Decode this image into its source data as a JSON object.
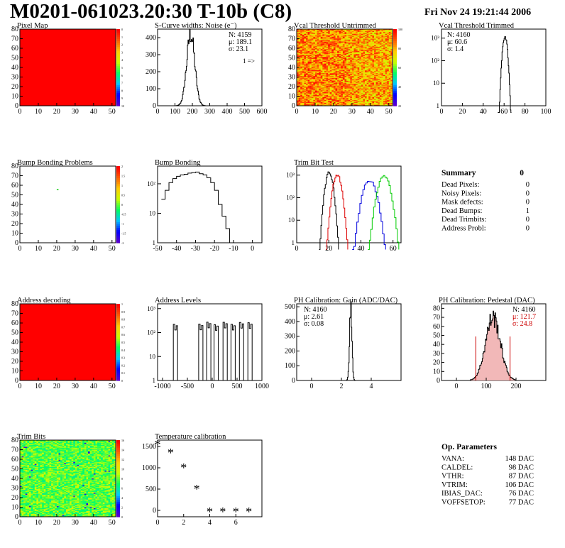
{
  "header": {
    "title": "M0201-061023.20:30 T-10b (C8)",
    "datestamp": "Fri Nov 24 19:21:44 2006"
  },
  "colors": {
    "map_red": "#ff0000",
    "gain_red": "#cc0000",
    "trim_black": "#000000",
    "trim_red": "#dd0000",
    "trim_blue": "#0000dd",
    "trim_green": "#00cc00"
  },
  "chart_data": [
    {
      "id": "pixel-map",
      "type": "heatmap",
      "title": "Pixel Map",
      "xlim": [
        0,
        52
      ],
      "ylim": [
        0,
        80
      ],
      "xticks": [
        "0",
        "10",
        "20",
        "30",
        "40",
        "50"
      ],
      "yticks": [
        "0",
        "10",
        "20",
        "30",
        "40",
        "50",
        "60",
        "70",
        "80"
      ],
      "fill": "uniform-red",
      "zticks": [
        "0",
        "1",
        "2",
        "3",
        "4",
        "5",
        "6",
        "7",
        "8",
        "9",
        "10"
      ]
    },
    {
      "id": "scurve",
      "type": "histogram",
      "title": "S-Curve widths: Noise (e⁻)",
      "xlim": [
        0,
        600
      ],
      "ylim": [
        0,
        450
      ],
      "xticks": [
        "0",
        "100",
        "200",
        "300",
        "400",
        "500",
        "600"
      ],
      "yticks": [
        "0",
        "100",
        "200",
        "300",
        "400"
      ],
      "stats": {
        "n": "N: 4159",
        "mean": "μ: 189.1",
        "sigma": "σ: 23.1"
      },
      "note": "1 =>",
      "series": [
        {
          "mean": 189.1,
          "sigma": 23.1,
          "peak": 420
        }
      ]
    },
    {
      "id": "vcal-untrimmed",
      "type": "heatmap",
      "title": "Vcal Threshold Untrimmed",
      "xlim": [
        0,
        52
      ],
      "ylim": [
        0,
        80
      ],
      "xticks": [
        "0",
        "10",
        "20",
        "30",
        "40",
        "50"
      ],
      "yticks": [
        "0",
        "10",
        "20",
        "30",
        "40",
        "50",
        "60",
        "70",
        "80"
      ],
      "fill": "noisy-orange",
      "zticks": [
        "100",
        "80",
        "60",
        "40",
        "20"
      ]
    },
    {
      "id": "vcal-trimmed",
      "type": "histogram",
      "title": "Vcal Threshold Trimmed",
      "logy": true,
      "xlim": [
        0,
        100
      ],
      "xticks": [
        "0",
        "20",
        "40",
        "60",
        "80",
        "100"
      ],
      "yticks": [
        "1",
        "10",
        "10²",
        "10³"
      ],
      "stats": {
        "n": "N: 4160",
        "mean": "μ: 60.6",
        "sigma": "σ: 1.4"
      },
      "series": [
        {
          "mean": 60.6,
          "sigma": 1.4,
          "peak": 1200
        }
      ]
    },
    {
      "id": "bump-map",
      "type": "heatmap",
      "title": "Bump Bonding Problems",
      "xlim": [
        0,
        52
      ],
      "ylim": [
        0,
        80
      ],
      "xticks": [
        "0",
        "10",
        "20",
        "30",
        "40",
        "50"
      ],
      "yticks": [
        "0",
        "10",
        "20",
        "30",
        "40",
        "50",
        "60",
        "70",
        "80"
      ],
      "fill": "empty",
      "points": [
        [
          20,
          56
        ]
      ],
      "zticks": [
        "2",
        "1.5",
        "1",
        "0.5",
        "0",
        "-0.5",
        "-1",
        "-1.5",
        "-2"
      ]
    },
    {
      "id": "bump-hist",
      "type": "histogram",
      "title": "Bump Bonding",
      "logy": true,
      "xlim": [
        -50,
        5
      ],
      "xticks": [
        "-50",
        "-40",
        "-30",
        "-20",
        "-10",
        "0"
      ],
      "yticks": [
        "1",
        "10",
        "10²"
      ],
      "series": [
        {
          "x": [
            -48,
            -46,
            -44,
            -42,
            -40,
            -38,
            -36,
            -34,
            -32,
            -30,
            -28,
            -26,
            -24,
            -22,
            -20,
            -18,
            -16,
            -14,
            -12,
            -10,
            -8,
            -6,
            -4,
            -2,
            0
          ],
          "y": [
            30,
            60,
            110,
            150,
            180,
            200,
            210,
            230,
            240,
            250,
            220,
            200,
            160,
            110,
            60,
            20,
            8,
            3,
            0,
            0,
            0,
            0,
            0,
            0,
            1
          ]
        }
      ]
    },
    {
      "id": "trimbit-test",
      "type": "histogram",
      "title": "Trim Bit Test",
      "logy": true,
      "xlim": [
        0,
        65
      ],
      "xticks": [
        "0",
        "20",
        "40",
        "60"
      ],
      "yticks": [
        "1",
        "10",
        "10²",
        "10³"
      ],
      "series": [
        {
          "color": "#000000",
          "mean": 20,
          "sigma": 1.5,
          "peak": 1300
        },
        {
          "color": "#dd0000",
          "mean": 25,
          "sigma": 1.7,
          "peak": 1000
        },
        {
          "color": "#0000dd",
          "mean": 45,
          "sigma": 2.6,
          "peak": 600
        },
        {
          "color": "#00cc00",
          "mean": 54,
          "sigma": 2.4,
          "peak": 900
        }
      ]
    },
    {
      "id": "address-map",
      "type": "heatmap",
      "title": "Address decoding",
      "xlim": [
        0,
        52
      ],
      "ylim": [
        0,
        80
      ],
      "xticks": [
        "0",
        "10",
        "20",
        "30",
        "40",
        "50"
      ],
      "yticks": [
        "0",
        "10",
        "20",
        "30",
        "40",
        "50",
        "60",
        "70",
        "80"
      ],
      "fill": "uniform-red",
      "zticks": [
        "1",
        "0.9",
        "0.8",
        "0.7",
        "0.6",
        "0.5",
        "0.4",
        "0.3",
        "0.2",
        "0.1",
        "0"
      ]
    },
    {
      "id": "address-levels",
      "type": "histogram",
      "title": "Address Levels",
      "logy": true,
      "xlim": [
        -1100,
        1000
      ],
      "xticks": [
        "-1000",
        "-500",
        "0",
        "500",
        "1000"
      ],
      "yticks": [
        "1",
        "10",
        "10²",
        "10³"
      ],
      "series": [
        {
          "peaks": [
            -740,
            -230,
            -70,
            80,
            260,
            420,
            590,
            760
          ],
          "height": 250
        }
      ]
    },
    {
      "id": "ph-gain",
      "type": "histogram",
      "title": "PH Calibration: Gain (ADC/DAC)",
      "xlim": [
        -1,
        6
      ],
      "ylim": [
        0,
        520
      ],
      "xticks": [
        "0",
        "2",
        "4"
      ],
      "yticks": [
        "0",
        "100",
        "200",
        "300",
        "400",
        "500"
      ],
      "stats": {
        "n": "N: 4160",
        "mean": "μ: 2.61",
        "sigma": "σ: 0.08"
      },
      "series": [
        {
          "mean": 2.61,
          "sigma": 0.08,
          "peak": 490
        }
      ]
    },
    {
      "id": "ph-pedestal",
      "type": "histogram",
      "title": "PH Calibration: Pedestal (DAC)",
      "xlim": [
        -50,
        300
      ],
      "ylim": [
        0,
        85
      ],
      "xticks": [
        "0",
        "100",
        "200"
      ],
      "yticks": [
        "0",
        "10",
        "20",
        "30",
        "40",
        "50",
        "60",
        "70",
        "80"
      ],
      "stats": {
        "n": "N: 4160",
        "mean": "μ: 121.7",
        "sigma": "σ: 24.8"
      },
      "series": [
        {
          "mean": 121.7,
          "sigma": 24.8,
          "peak": 70
        }
      ],
      "fit_range": [
        65,
        180
      ]
    },
    {
      "id": "trim-bits",
      "type": "heatmap",
      "title": "Trim Bits",
      "xlim": [
        0,
        52
      ],
      "ylim": [
        0,
        80
      ],
      "xticks": [
        "0",
        "10",
        "20",
        "30",
        "40",
        "50"
      ],
      "yticks": [
        "0",
        "10",
        "20",
        "30",
        "40",
        "50",
        "60",
        "70",
        "80"
      ],
      "fill": "noisy-green",
      "zticks": [
        "16",
        "14",
        "12",
        "10",
        "8",
        "6",
        "4",
        "2",
        "0"
      ]
    },
    {
      "id": "temperature",
      "type": "scatter",
      "title": "Temperature calibration",
      "xlim": [
        0,
        8
      ],
      "ylim": [
        -150,
        1650
      ],
      "xticks": [
        "0",
        "2",
        "4",
        "6"
      ],
      "yticks": [
        "0",
        "500",
        "1000",
        "1500"
      ],
      "x": [
        0,
        1,
        2,
        3,
        4,
        5,
        6,
        7
      ],
      "y": [
        1550,
        1350,
        1000,
        500,
        -30,
        -30,
        -30,
        -30
      ]
    }
  ],
  "summary": {
    "title": "Summary",
    "total": "0",
    "rows": [
      {
        "label": "Dead Pixels:",
        "value": "0"
      },
      {
        "label": "Noisy Pixels:",
        "value": "0"
      },
      {
        "label": "Mask defects:",
        "value": "0"
      },
      {
        "label": "Dead Bumps:",
        "value": "1"
      },
      {
        "label": "Dead Trimbits:",
        "value": "0"
      },
      {
        "label": "Address Probl:",
        "value": "0"
      }
    ]
  },
  "op_params": {
    "title": "Op. Parameters",
    "rows": [
      {
        "label": "VANA:",
        "value": "148 DAC"
      },
      {
        "label": "CALDEL:",
        "value": "98 DAC"
      },
      {
        "label": "VTHR:",
        "value": "87 DAC"
      },
      {
        "label": "VTRIM:",
        "value": "106 DAC"
      },
      {
        "label": "IBIAS_DAC:",
        "value": "76 DAC"
      },
      {
        "label": "VOFFSETOP:",
        "value": "77 DAC"
      }
    ]
  }
}
